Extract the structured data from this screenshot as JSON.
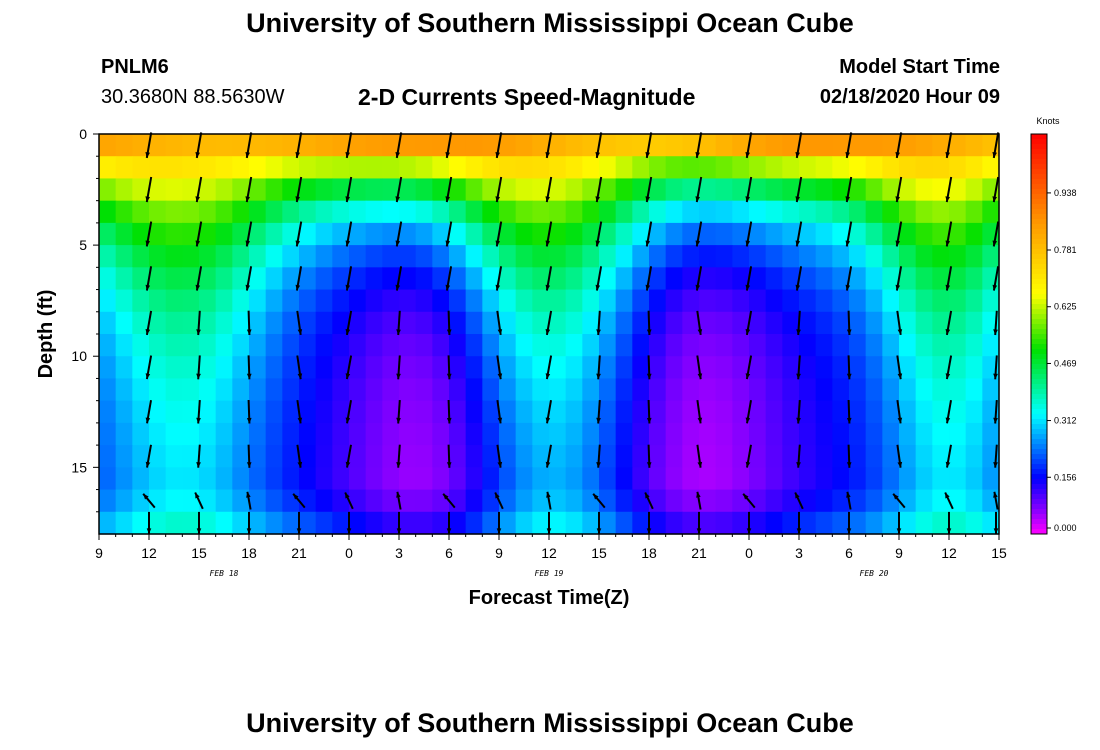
{
  "page": {
    "title": "University of Southern Mississippi Ocean Cube",
    "footer_title": "University of Southern Mississippi Ocean Cube",
    "station_id": "PNLM6",
    "station_coords": "30.3680N 88.5630W",
    "chart_title": "2-D Currents Speed-Magnitude",
    "model_start_label": "Model Start Time",
    "model_start_value": "02/18/2020 Hour 09"
  },
  "chart_data": {
    "type": "heatmap",
    "title": "2-D Currents Speed-Magnitude",
    "xlabel": "Forecast Time(Z)",
    "ylabel": "Depth (ft)",
    "x_range_hours": [
      0,
      54
    ],
    "y_range_ft": [
      0,
      18
    ],
    "y_inverted": true,
    "x_ticks": [
      "9",
      "12",
      "15",
      "18",
      "21",
      "0",
      "3",
      "6",
      "9",
      "12",
      "15",
      "18",
      "21",
      "0",
      "3",
      "6",
      "9",
      "12",
      "15"
    ],
    "y_ticks": [
      0,
      5,
      10,
      15
    ],
    "date_labels": [
      {
        "label": "FEB 18",
        "hour": 7.5
      },
      {
        "label": "FEB 19",
        "hour": 27
      },
      {
        "label": "FEB 20",
        "hour": 46.5
      }
    ],
    "colorbar": {
      "unit": "Knots",
      "min": 0.0,
      "max": 1.1,
      "ticks": [
        "0.938",
        "0.781",
        "0.625",
        "0.469",
        "0.312",
        "0.156",
        "0.000"
      ],
      "tick_values": [
        0.938,
        0.781,
        0.625,
        0.469,
        0.312,
        0.156,
        0.0
      ]
    },
    "speed_grid_note": "speed in knots by depth row (ft, top to bottom) and hourly time column",
    "depth_levels_ft": [
      0.5,
      1.5,
      2.5,
      3.5,
      4.5,
      5.5,
      6.5,
      7.5,
      8.5,
      9.5,
      10.5,
      11.5,
      12.5,
      13.5,
      14.5,
      15.5,
      16.5,
      17.5
    ],
    "vector_columns_hours": [
      3,
      6,
      9,
      12,
      15,
      18,
      21,
      24,
      27,
      30,
      33,
      36,
      39,
      42,
      45,
      48,
      51,
      54
    ],
    "vector_rows_ft": [
      0.5,
      2.5,
      4.5,
      6.5,
      8.5,
      10.5,
      12.5,
      14.5,
      16.5,
      17.5
    ]
  }
}
